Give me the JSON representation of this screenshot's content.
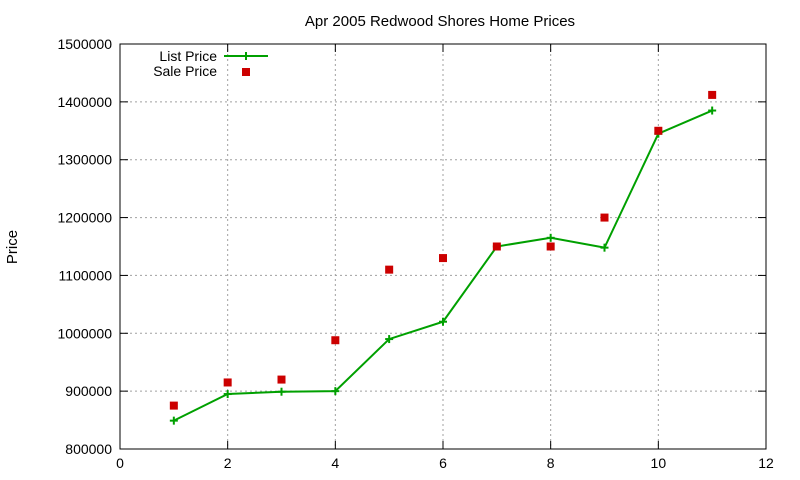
{
  "chart_data": {
    "type": "line",
    "title": "Apr 2005 Redwood Shores Home Prices",
    "xlabel": "",
    "ylabel": "Price",
    "xlim": [
      0,
      12
    ],
    "ylim": [
      800000,
      1500000
    ],
    "x_ticks": [
      "0",
      "2",
      "4",
      "6",
      "8",
      "10",
      "12"
    ],
    "y_ticks": [
      "800000",
      "900000",
      "1000000",
      "1100000",
      "1200000",
      "1300000",
      "1400000",
      "1500000"
    ],
    "grid": true,
    "legend_position": "top-left",
    "series": [
      {
        "name": "List Price",
        "style": "line-with-plus-markers",
        "color": "#00a000",
        "x": [
          1,
          2,
          3,
          4,
          5,
          6,
          7,
          8,
          9,
          10,
          11
        ],
        "y": [
          849000,
          895000,
          899000,
          900000,
          990000,
          1020000,
          1150000,
          1165000,
          1148000,
          1345000,
          1385000
        ]
      },
      {
        "name": "Sale Price",
        "style": "square-markers",
        "color": "#cc0000",
        "x": [
          1,
          2,
          3,
          4,
          5,
          6,
          7,
          8,
          9,
          10,
          11
        ],
        "y": [
          875000,
          915000,
          920000,
          988000,
          1110000,
          1130000,
          1150000,
          1150000,
          1200000,
          1350000,
          1412000
        ]
      }
    ]
  }
}
